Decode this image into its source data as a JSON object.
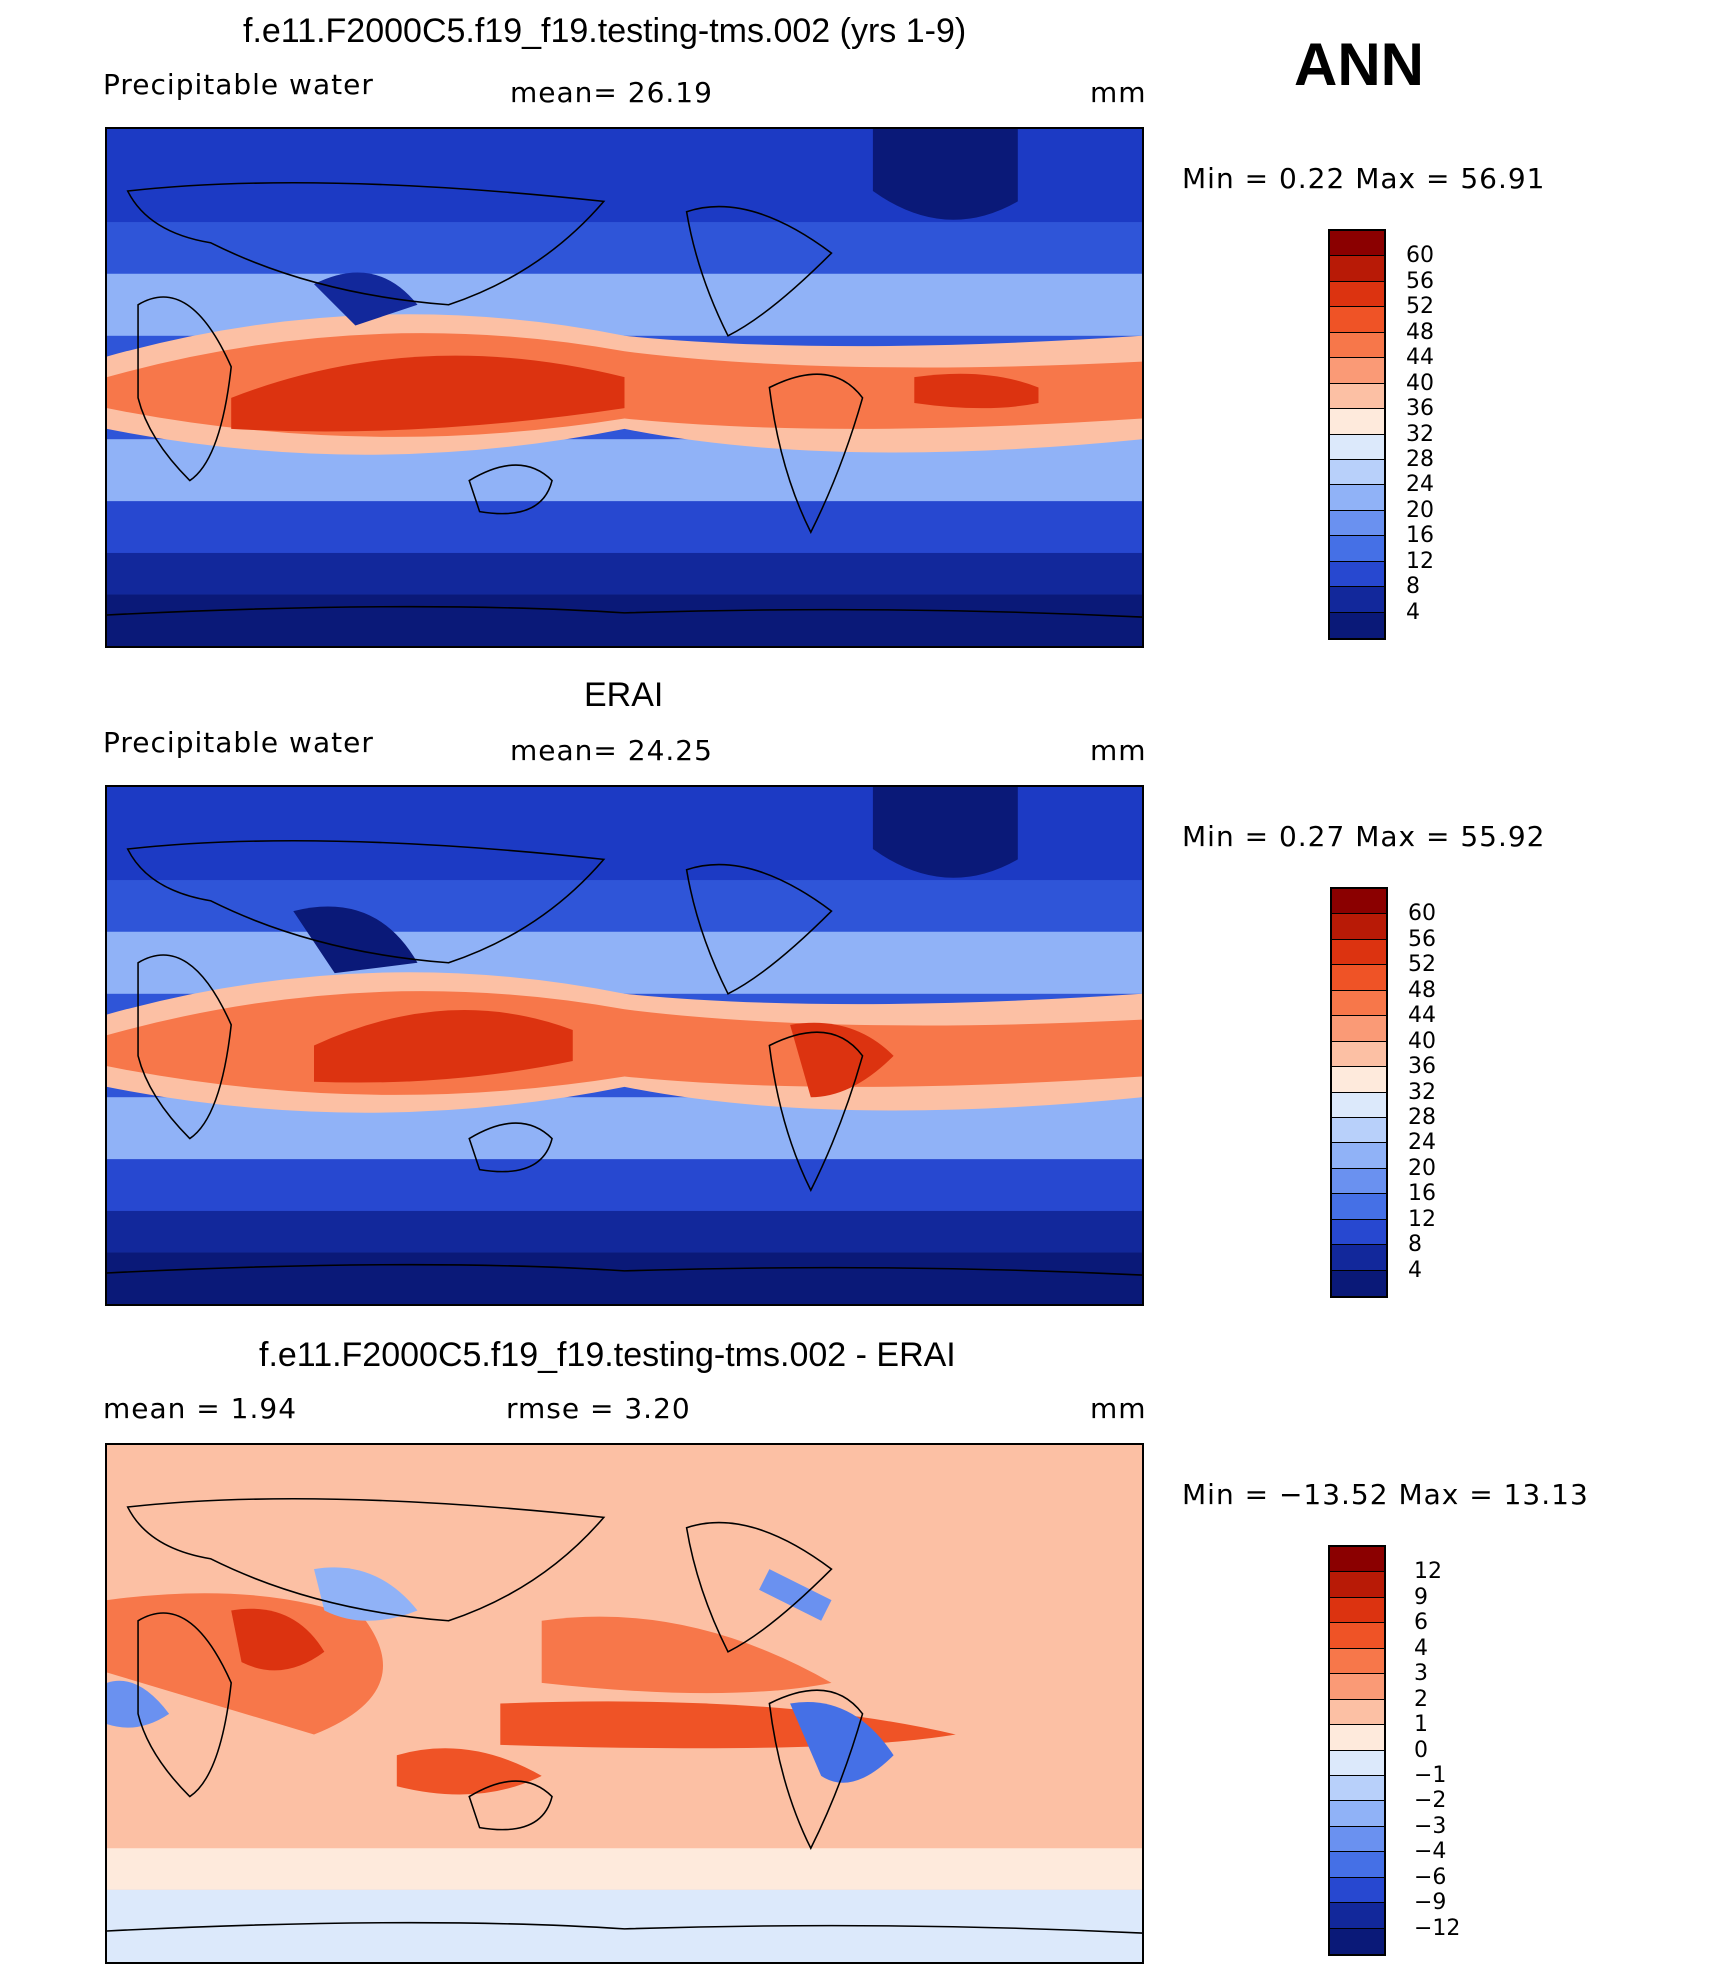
{
  "season": "ANN",
  "panels": [
    {
      "title": "f.e11.F2000C5.f19_f19.testing-tms.002 (yrs 1-9)",
      "left_label": "Precipitable  water",
      "mid_label": "mean=   26.19",
      "units": "mm",
      "minmax": "Min  =     0.22  Max  =    56.91",
      "colorbar": {
        "labels": [
          "60",
          "56",
          "52",
          "48",
          "44",
          "40",
          "36",
          "32",
          "28",
          "24",
          "20",
          "16",
          "12",
          "8",
          "4"
        ],
        "colors": [
          "#8b0000",
          "#b81a06",
          "#dc3310",
          "#ef5326",
          "#f7774a",
          "#fa9a76",
          "#fcc0a4",
          "#feeadc",
          "#dce9fb",
          "#b8d0fa",
          "#90b2f7",
          "#6a91f0",
          "#4570e6",
          "#2748d0",
          "#12289b",
          "#0a1978"
        ]
      }
    },
    {
      "title": "ERAI",
      "left_label": "Precipitable  water",
      "mid_label": "mean=   24.25",
      "units": "mm",
      "minmax": "Min  =     0.27  Max  =    55.92",
      "colorbar": {
        "labels": [
          "60",
          "56",
          "52",
          "48",
          "44",
          "40",
          "36",
          "32",
          "28",
          "24",
          "20",
          "16",
          "12",
          "8",
          "4"
        ],
        "colors": [
          "#8b0000",
          "#b81a06",
          "#dc3310",
          "#ef5326",
          "#f7774a",
          "#fa9a76",
          "#fcc0a4",
          "#feeadc",
          "#dce9fb",
          "#b8d0fa",
          "#90b2f7",
          "#6a91f0",
          "#4570e6",
          "#2748d0",
          "#12289b",
          "#0a1978"
        ]
      }
    },
    {
      "title": "f.e11.F2000C5.f19_f19.testing-tms.002 - ERAI",
      "left_label": "mean  =     1.94",
      "mid_label": "rmse  =     3.20",
      "units": "mm",
      "minmax": "Min  = −13.52  Max  =    13.13",
      "colorbar": {
        "labels": [
          "12",
          "9",
          "6",
          "4",
          "3",
          "2",
          "1",
          "0",
          "−1",
          "−2",
          "−3",
          "−4",
          "−6",
          "−9",
          "−12"
        ],
        "colors": [
          "#8b0000",
          "#b81a06",
          "#dc3310",
          "#ef5326",
          "#f7774a",
          "#fa9a76",
          "#fcc0a4",
          "#feeadc",
          "#dce9fb",
          "#b8d0fa",
          "#90b2f7",
          "#6a91f0",
          "#4570e6",
          "#2748d0",
          "#12289b",
          "#0a1978"
        ]
      }
    }
  ]
}
